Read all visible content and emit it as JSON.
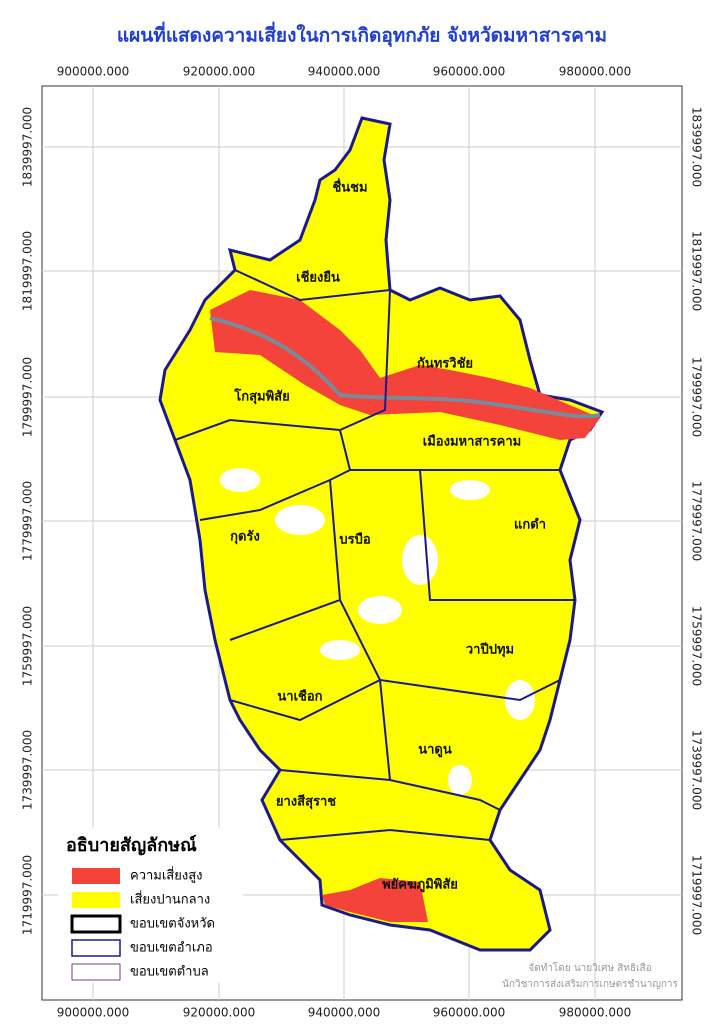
{
  "title": "แผนที่แสดงความเสี่ยงในการเกิดอุทกภัย จังหวัดมหาสารคาม",
  "x_labels": [
    "900000.000",
    "920000.000",
    "940000.000",
    "960000.000",
    "980000.000"
  ],
  "y_labels": [
    "1839997.000",
    "1819997.000",
    "1799997.000",
    "1779997.000",
    "1759997.000",
    "1739997.000",
    "1719997.000"
  ],
  "districts": [
    "ชื่นชม",
    "เชียงยืน",
    "โกสุมพิสัย",
    "กันทรวิชัย",
    "เมืองมหาสารคาม",
    "แกดำ",
    "กุดรัง",
    "บรบือ",
    "วาปีปทุม",
    "นาเชือก",
    "นาดูน",
    "ยางสีสุราช",
    "พยัคฆภูมิพิสัย"
  ],
  "legend": {
    "title": "อธิบายสัญลักษณ์",
    "items": [
      "ความเสี่ยงสูง",
      "เสี่ยงปานกลาง",
      "ขอบเขตจังหวัด",
      "ขอบเขตอำเภอ",
      "ขอบเขตตำบล"
    ]
  },
  "credit": [
    "จัดทำโดย นายวิเศษ สิทธิเสือ",
    "นักวิชาการส่งเสริมการเกษตรชำนาญการ"
  ]
}
